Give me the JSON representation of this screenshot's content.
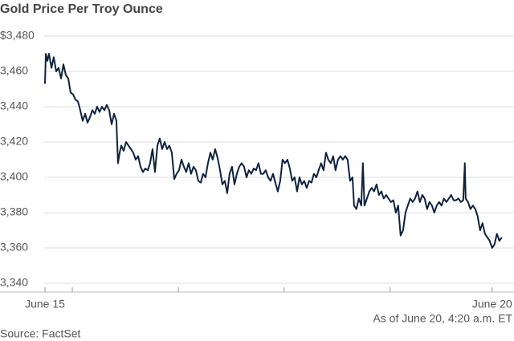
{
  "chart_data": {
    "type": "line",
    "title": "Gold Price Per Troy Ounce",
    "note": "As of June 20, 4:20 a.m. ET",
    "source": "Source: FactSet",
    "color": "#0d2240",
    "grid": true,
    "ylim": [
      3335,
      3480
    ],
    "yticks": [
      {
        "value": 3340,
        "label": "3,340"
      },
      {
        "value": 3360,
        "label": "3,360"
      },
      {
        "value": 3380,
        "label": "3,380"
      },
      {
        "value": 3400,
        "label": "3,400"
      },
      {
        "value": 3420,
        "label": "3,420"
      },
      {
        "value": 3440,
        "label": "3,440"
      },
      {
        "value": 3460,
        "label": "3,460"
      },
      {
        "value": 3480,
        "label": "$3,480"
      }
    ],
    "xlim": [
      0,
      4.32
    ],
    "xticks": [
      {
        "value": 0,
        "label": "June 15"
      },
      {
        "value": 4.22,
        "label": "June 20"
      }
    ],
    "xminorticks": [
      0.258,
      1.258,
      2.258,
      3.258
    ],
    "x": [
      0,
      0.008,
      0.023,
      0.038,
      0.061,
      0.083,
      0.106,
      0.129,
      0.152,
      0.174,
      0.197,
      0.22,
      0.242,
      0.265,
      0.288,
      0.311,
      0.333,
      0.356,
      0.379,
      0.402,
      0.424,
      0.447,
      0.47,
      0.492,
      0.515,
      0.538,
      0.561,
      0.583,
      0.606,
      0.629,
      0.652,
      0.674,
      0.689,
      0.705,
      0.72,
      0.742,
      0.765,
      0.788,
      0.811,
      0.833,
      0.856,
      0.879,
      0.902,
      0.924,
      0.947,
      0.97,
      0.992,
      1.015,
      1.038,
      1.061,
      1.083,
      1.106,
      1.129,
      1.152,
      1.174,
      1.197,
      1.22,
      1.242,
      1.265,
      1.288,
      1.311,
      1.333,
      1.356,
      1.379,
      1.402,
      1.424,
      1.447,
      1.47,
      1.492,
      1.515,
      1.538,
      1.561,
      1.583,
      1.606,
      1.629,
      1.652,
      1.674,
      1.697,
      1.72,
      1.742,
      1.765,
      1.788,
      1.811,
      1.833,
      1.856,
      1.879,
      1.902,
      1.924,
      1.947,
      1.97,
      1.992,
      2.015,
      2.038,
      2.061,
      2.083,
      2.106,
      2.129,
      2.152,
      2.174,
      2.197,
      2.22,
      2.242,
      2.265,
      2.288,
      2.311,
      2.333,
      2.356,
      2.379,
      2.402,
      2.424,
      2.447,
      2.47,
      2.492,
      2.515,
      2.538,
      2.561,
      2.583,
      2.606,
      2.629,
      2.652,
      2.674,
      2.697,
      2.72,
      2.742,
      2.765,
      2.788,
      2.811,
      2.833,
      2.856,
      2.879,
      2.902,
      2.917,
      2.939,
      2.962,
      2.985,
      3.0,
      3.015,
      3.038,
      3.061,
      3.083,
      3.106,
      3.129,
      3.152,
      3.174,
      3.197,
      3.22,
      3.242,
      3.265,
      3.288,
      3.311,
      3.333,
      3.356,
      3.379,
      3.402,
      3.424,
      3.447,
      3.47,
      3.492,
      3.515,
      3.538,
      3.561,
      3.583,
      3.606,
      3.629,
      3.652,
      3.674,
      3.697,
      3.72,
      3.742,
      3.765,
      3.788,
      3.811,
      3.833,
      3.856,
      3.879,
      3.902,
      3.924,
      3.947,
      3.962,
      3.97,
      3.992,
      4.015,
      4.038,
      4.061,
      4.083,
      4.106,
      4.129,
      4.152,
      4.174,
      4.197,
      4.22,
      4.242,
      4.265,
      4.288,
      4.311
    ],
    "values": [
      3453,
      3470,
      3466,
      3470,
      3462,
      3468,
      3460,
      3462,
      3456,
      3464,
      3458,
      3456,
      3448,
      3447,
      3444,
      3443,
      3438,
      3432,
      3436,
      3431,
      3434,
      3438,
      3436,
      3440,
      3437,
      3440,
      3438,
      3441,
      3438,
      3430,
      3436,
      3432,
      3408,
      3414,
      3418,
      3415,
      3420,
      3418,
      3416,
      3414,
      3410,
      3412,
      3406,
      3403,
      3405,
      3404,
      3408,
      3416,
      3403,
      3418,
      3422,
      3416,
      3420,
      3416,
      3418,
      3414,
      3399,
      3402,
      3404,
      3410,
      3406,
      3403,
      3408,
      3402,
      3406,
      3404,
      3398,
      3397,
      3402,
      3400,
      3408,
      3414,
      3410,
      3416,
      3411,
      3404,
      3396,
      3398,
      3391,
      3402,
      3406,
      3396,
      3402,
      3406,
      3408,
      3406,
      3400,
      3404,
      3402,
      3405,
      3404,
      3408,
      3402,
      3402,
      3404,
      3400,
      3398,
      3402,
      3397,
      3392,
      3398,
      3410,
      3408,
      3410,
      3405,
      3398,
      3400,
      3392,
      3400,
      3396,
      3398,
      3394,
      3398,
      3397,
      3402,
      3400,
      3404,
      3408,
      3404,
      3414,
      3410,
      3408,
      3412,
      3404,
      3410,
      3412,
      3410,
      3412,
      3410,
      3398,
      3400,
      3384,
      3382,
      3388,
      3384,
      3408,
      3384,
      3388,
      3392,
      3394,
      3392,
      3396,
      3390,
      3392,
      3388,
      3390,
      3388,
      3386,
      3387,
      3380,
      3384,
      3367,
      3370,
      3380,
      3384,
      3388,
      3386,
      3388,
      3392,
      3386,
      3390,
      3388,
      3382,
      3386,
      3384,
      3380,
      3384,
      3386,
      3384,
      3388,
      3386,
      3388,
      3390,
      3387,
      3387,
      3388,
      3386,
      3387,
      3408,
      3388,
      3386,
      3382,
      3384,
      3382,
      3378,
      3370,
      3374,
      3368,
      3366,
      3364,
      3360,
      3362,
      3368,
      3364,
      3366
    ]
  }
}
